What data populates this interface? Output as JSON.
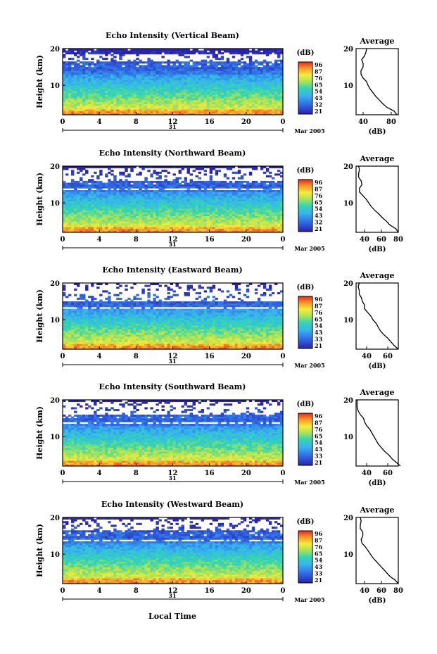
{
  "figure": {
    "xlabel": "Local Time",
    "date_label": "Mar 2005",
    "day_label": "31",
    "colorbar_label": "(dB)",
    "avg_title": "Average",
    "avg_xlabel": "(dB)",
    "ylabel": "Height (km)"
  },
  "chart_data": [
    {
      "type": "heatmap",
      "title": "Echo Intensity (Vertical Beam)",
      "x_ticks": [
        "0",
        "4",
        "8",
        "12",
        "16",
        "20",
        "0"
      ],
      "y_ticks": [
        "20",
        "10"
      ],
      "xlim": [
        0,
        24
      ],
      "ylim": [
        2,
        20
      ],
      "colorbar_ticks": [
        "96",
        "87",
        "76",
        "65",
        "54",
        "43",
        "32",
        "21"
      ],
      "avg_x_ticks": [
        "40",
        "80"
      ],
      "avg_xlim": [
        30,
        90
      ],
      "avg_profile": {
        "height_km": [
          2,
          3,
          4,
          5,
          6,
          7,
          8,
          9,
          10,
          11,
          12,
          13,
          14,
          15,
          16,
          17,
          18,
          19,
          20
        ],
        "dB": [
          88,
          84,
          74,
          68,
          63,
          58,
          54,
          50,
          47,
          45,
          40,
          37,
          37,
          40,
          40,
          38,
          42,
          44,
          45
        ]
      }
    },
    {
      "type": "heatmap",
      "title": "Echo Intensity (Northward Beam)",
      "x_ticks": [
        "0",
        "4",
        "8",
        "12",
        "16",
        "20",
        "0"
      ],
      "y_ticks": [
        "20",
        "10"
      ],
      "xlim": [
        0,
        24
      ],
      "ylim": [
        2,
        20
      ],
      "colorbar_ticks": [
        "96",
        "87",
        "76",
        "65",
        "54",
        "43",
        "32",
        "21"
      ],
      "avg_x_ticks": [
        "40",
        "60",
        "80"
      ],
      "avg_xlim": [
        30,
        80
      ],
      "avg_profile": {
        "height_km": [
          2,
          3,
          4,
          5,
          6,
          7,
          8,
          9,
          10,
          11,
          12,
          13,
          14,
          15,
          16,
          17,
          18,
          19,
          20
        ],
        "dB": [
          80,
          77,
          70,
          66,
          61,
          57,
          52,
          48,
          45,
          42,
          38,
          34,
          34,
          37,
          36,
          33,
          33,
          34,
          33
        ]
      }
    },
    {
      "type": "heatmap",
      "title": "Echo Intensity (Eastward Beam)",
      "x_ticks": [
        "0",
        "4",
        "8",
        "12",
        "16",
        "20",
        "0"
      ],
      "y_ticks": [
        "20",
        "10"
      ],
      "xlim": [
        0,
        24
      ],
      "ylim": [
        2,
        20
      ],
      "colorbar_ticks": [
        "96",
        "87",
        "76",
        "65",
        "54",
        "43",
        "33",
        "21"
      ],
      "avg_x_ticks": [
        "40",
        "60"
      ],
      "avg_xlim": [
        30,
        70
      ],
      "avg_profile": {
        "height_km": [
          2,
          3,
          4,
          5,
          6,
          7,
          8,
          9,
          10,
          11,
          12,
          13,
          14,
          15,
          16,
          17,
          18,
          19,
          20
        ],
        "dB": [
          70,
          66,
          63,
          60,
          56,
          53,
          51,
          49,
          46,
          44,
          41,
          38,
          38,
          36,
          35,
          33,
          33,
          32,
          33
        ]
      }
    },
    {
      "type": "heatmap",
      "title": "Echo Intensity (Southward Beam)",
      "x_ticks": [
        "0",
        "4",
        "8",
        "12",
        "16",
        "20",
        "0"
      ],
      "y_ticks": [
        "20",
        "10"
      ],
      "xlim": [
        0,
        24
      ],
      "ylim": [
        2,
        20
      ],
      "colorbar_ticks": [
        "96",
        "87",
        "76",
        "65",
        "54",
        "43",
        "33",
        "21"
      ],
      "avg_x_ticks": [
        "40",
        "60"
      ],
      "avg_xlim": [
        30,
        70
      ],
      "avg_profile": {
        "height_km": [
          2,
          3,
          4,
          5,
          6,
          7,
          8,
          9,
          10,
          11,
          12,
          13,
          14,
          15,
          16,
          17,
          18,
          19,
          20
        ],
        "dB": [
          72,
          68,
          64,
          61,
          57,
          54,
          51,
          49,
          47,
          45,
          43,
          40,
          38,
          37,
          34,
          32,
          31,
          31,
          31
        ]
      }
    },
    {
      "type": "heatmap",
      "title": "Echo Intensity (Westward Beam)",
      "x_ticks": [
        "0",
        "4",
        "8",
        "12",
        "16",
        "20",
        "0"
      ],
      "y_ticks": [
        "20",
        "10"
      ],
      "xlim": [
        0,
        24
      ],
      "ylim": [
        2,
        20
      ],
      "colorbar_ticks": [
        "96",
        "87",
        "76",
        "65",
        "54",
        "43",
        "33",
        "21"
      ],
      "avg_x_ticks": [
        "40",
        "60",
        "80"
      ],
      "avg_xlim": [
        30,
        80
      ],
      "avg_profile": {
        "height_km": [
          2,
          3,
          4,
          5,
          6,
          7,
          8,
          9,
          10,
          11,
          12,
          13,
          14,
          15,
          16,
          17,
          18,
          19,
          20
        ],
        "dB": [
          80,
          76,
          70,
          66,
          62,
          58,
          54,
          50,
          47,
          44,
          41,
          37,
          36,
          38,
          38,
          35,
          35,
          36,
          35
        ]
      }
    }
  ]
}
